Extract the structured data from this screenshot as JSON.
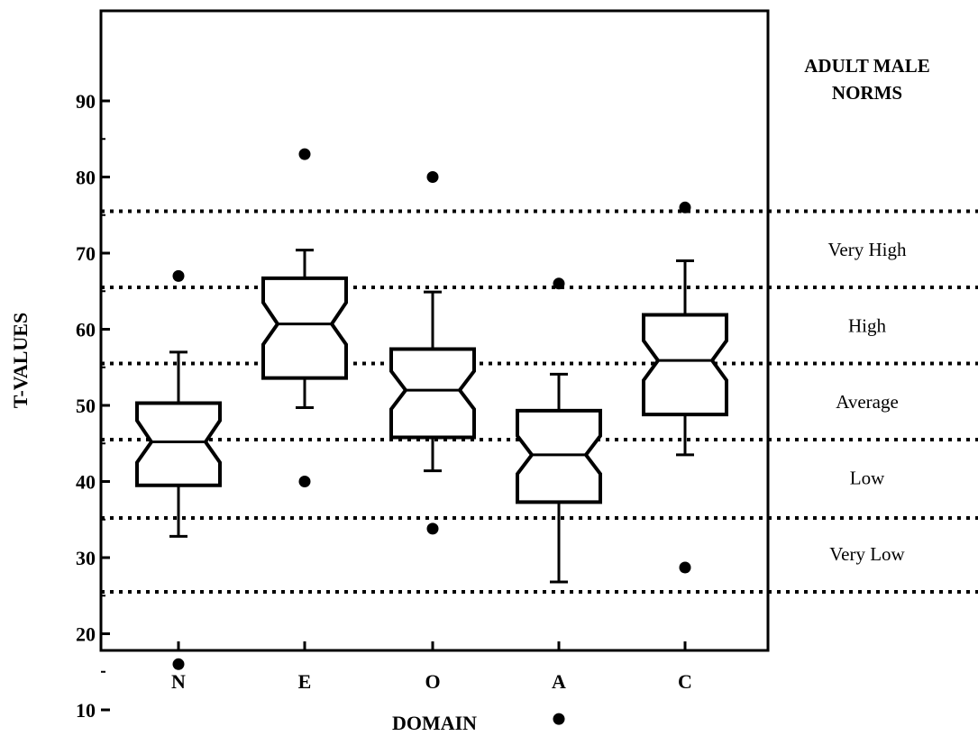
{
  "chart_data": {
    "type": "boxplot",
    "notched": true,
    "xlabel": "DOMAIN",
    "ylabel": "T-VALUES",
    "ylim": [
      8,
      90
    ],
    "yticks": [
      10,
      20,
      30,
      40,
      50,
      60,
      70,
      80,
      90
    ],
    "categories": [
      "N",
      "E",
      "O",
      "A",
      "C"
    ],
    "boxes": [
      {
        "category": "N",
        "whisker_low": 32.8,
        "q1": 39.5,
        "median": 45.2,
        "q3": 50.3,
        "whisker_high": 57.0,
        "notch_low": 42.5,
        "notch_high": 48.0,
        "outliers": [
          67,
          16
        ]
      },
      {
        "category": "E",
        "whisker_low": 49.7,
        "q1": 53.6,
        "median": 60.7,
        "q3": 66.7,
        "whisker_high": 70.4,
        "notch_low": 58.0,
        "notch_high": 63.5,
        "outliers": [
          83,
          40
        ]
      },
      {
        "category": "O",
        "whisker_low": 41.4,
        "q1": 45.8,
        "median": 52.0,
        "q3": 57.4,
        "whisker_high": 64.9,
        "notch_low": 49.5,
        "notch_high": 54.5,
        "outliers": [
          80,
          33.8
        ]
      },
      {
        "category": "A",
        "whisker_low": 26.8,
        "q1": 37.3,
        "median": 43.5,
        "q3": 49.3,
        "whisker_high": 54.1,
        "notch_low": 41.0,
        "notch_high": 46.0,
        "outliers": [
          66,
          8.8
        ]
      },
      {
        "category": "C",
        "whisker_low": 43.5,
        "q1": 48.8,
        "median": 55.9,
        "q3": 61.9,
        "whisker_high": 69.0,
        "notch_low": 53.3,
        "notch_high": 58.5,
        "outliers": [
          76,
          28.7
        ]
      }
    ],
    "reference_lines": [
      75.5,
      65.5,
      55.5,
      45.5,
      35.2,
      25.5
    ],
    "norms_title": [
      "ADULT MALE",
      "NORMS"
    ],
    "norm_bands": [
      {
        "label": "Very High",
        "y": 70.5
      },
      {
        "label": "High",
        "y": 60.5
      },
      {
        "label": "Average",
        "y": 50.5
      },
      {
        "label": "Low",
        "y": 40.5
      },
      {
        "label": "Very Low",
        "y": 30.5
      }
    ],
    "grid": false,
    "line_color": "#000000",
    "background": "#ffffff"
  }
}
